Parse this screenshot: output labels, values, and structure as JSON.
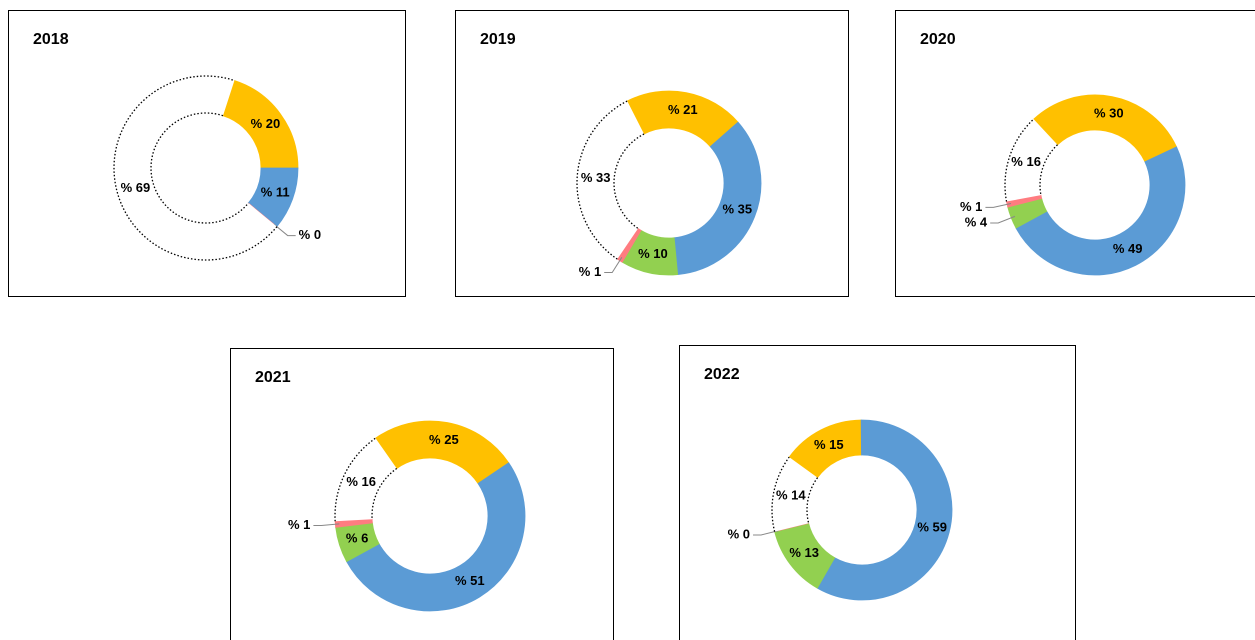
{
  "chart_data": [
    {
      "type": "pie",
      "title": "2018",
      "values": [
        20,
        11,
        0,
        69
      ],
      "value_labels": [
        "% 20",
        "% 11",
        "% 0",
        "% 69"
      ],
      "colors": [
        "#ffc000",
        "#5b9bd5",
        "#ff7c80",
        "#ffffff"
      ],
      "start_angle": 18
    },
    {
      "type": "pie",
      "title": "2019",
      "values": [
        21,
        35,
        10,
        1,
        33
      ],
      "value_labels": [
        "% 21",
        "% 35",
        "% 10",
        "% 1",
        "% 33"
      ],
      "colors": [
        "#ffc000",
        "#5b9bd5",
        "#92d050",
        "#ff7c80",
        "#ffffff"
      ],
      "start_angle": -27
    },
    {
      "type": "pie",
      "title": "2020",
      "values": [
        30,
        49,
        4,
        1,
        16
      ],
      "value_labels": [
        "% 30",
        "% 49",
        "% 4",
        "% 1",
        "% 16"
      ],
      "colors": [
        "#ffc000",
        "#5b9bd5",
        "#92d050",
        "#ff7c80",
        "#ffffff"
      ],
      "start_angle": -43
    },
    {
      "type": "pie",
      "title": "2021",
      "values": [
        25,
        51,
        6,
        1,
        16
      ],
      "value_labels": [
        "% 25",
        "% 51",
        "% 6",
        "% 1",
        "% 16"
      ],
      "colors": [
        "#ffc000",
        "#5b9bd5",
        "#92d050",
        "#ff7c80",
        "#ffffff"
      ],
      "start_angle": -35
    },
    {
      "type": "pie",
      "title": "2022",
      "values": [
        15,
        59,
        13,
        0,
        14
      ],
      "value_labels": [
        "% 15",
        "% 59",
        "% 13",
        "% 0",
        "% 14"
      ],
      "colors": [
        "#ffc000",
        "#5b9bd5",
        "#92d050",
        "#ff7c80",
        "#ffffff"
      ],
      "start_angle": -54
    }
  ]
}
